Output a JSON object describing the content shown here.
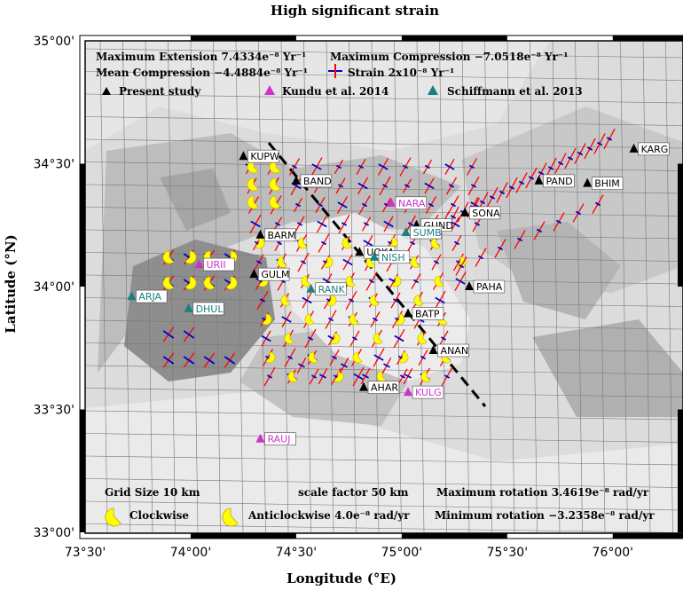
{
  "title": "High significant strain",
  "xlabel": "Longitude (°E)",
  "ylabel": "Latitude (°N)",
  "xticks": [
    "73°30'",
    "74°00'",
    "74°30'",
    "75°00'",
    "75°30'",
    "76°00'"
  ],
  "yticks": [
    "35°00'",
    "34°30'",
    "34°00'",
    "33°30'",
    "33°00'"
  ],
  "legend": {
    "max_extension": "Maximum Extension 7.4334e⁻⁸ Yr⁻¹",
    "max_compression": "Maximum Compression −7.0518e⁻⁸ Yr⁻¹",
    "mean_compression": "Mean Compression −4.4884e⁻⁸ Yr⁻¹",
    "strain_scale": "Strain 2x10⁻⁸ Yr⁻¹",
    "present_study": "Present study",
    "kundu": "Kundu et al. 2014",
    "schiffmann": "Schiffmann et al. 2013",
    "grid_size": "Grid Size 10 km",
    "scale_factor": "scale factor 50 km",
    "max_rotation": "Maximum rotation 3.4619e⁻⁸ rad/yr",
    "min_rotation": "Minimum rotation −3.2358e⁻⁸ rad/yr",
    "clockwise": "Clockwise",
    "anticlockwise": "Anticlockwise 4.0e⁻⁸ rad/yr"
  },
  "colors": {
    "present_study": "#000000",
    "kundu": "#cc33cc",
    "schiffmann": "#1a8080",
    "extension_arrow": "#ff0000",
    "compression_arrow": "#0000cc",
    "rotation_wedge": "#ffff00",
    "fault_line": "#000000"
  },
  "map_extent": {
    "lon": [
      73.5,
      76.333
    ],
    "lat": [
      33.0,
      35.0
    ]
  },
  "stations": [
    {
      "name": "KUPW",
      "group": "present_study",
      "lon": 74.25,
      "lat": 34.53
    },
    {
      "name": "BAND",
      "group": "present_study",
      "lon": 74.5,
      "lat": 34.43
    },
    {
      "name": "BARM",
      "group": "present_study",
      "lon": 74.33,
      "lat": 34.21
    },
    {
      "name": "GULM",
      "group": "present_study",
      "lon": 74.3,
      "lat": 34.05
    },
    {
      "name": "UOKA",
      "group": "present_study",
      "lon": 74.8,
      "lat": 34.14
    },
    {
      "name": "GUND",
      "group": "present_study",
      "lon": 75.07,
      "lat": 34.25
    },
    {
      "name": "SONA",
      "group": "present_study",
      "lon": 75.3,
      "lat": 34.3
    },
    {
      "name": "BATP",
      "group": "present_study",
      "lon": 75.03,
      "lat": 33.89
    },
    {
      "name": "PAHA",
      "group": "present_study",
      "lon": 75.32,
      "lat": 34.0
    },
    {
      "name": "ANAN",
      "group": "present_study",
      "lon": 75.15,
      "lat": 33.74
    },
    {
      "name": "AHAR",
      "group": "present_study",
      "lon": 74.82,
      "lat": 33.59
    },
    {
      "name": "PAND",
      "group": "present_study",
      "lon": 75.65,
      "lat": 34.43
    },
    {
      "name": "BHIM",
      "group": "present_study",
      "lon": 75.88,
      "lat": 34.42
    },
    {
      "name": "KARG",
      "group": "present_study",
      "lon": 76.1,
      "lat": 34.56
    },
    {
      "name": "NARA",
      "group": "kundu",
      "lon": 74.95,
      "lat": 34.34
    },
    {
      "name": "URII",
      "group": "kundu",
      "lon": 74.04,
      "lat": 34.09
    },
    {
      "name": "KULG",
      "group": "kundu",
      "lon": 75.03,
      "lat": 33.57
    },
    {
      "name": "RAUJ",
      "group": "kundu",
      "lon": 74.33,
      "lat": 33.38
    },
    {
      "name": "SUMB",
      "group": "schiffmann",
      "lon": 75.02,
      "lat": 34.22
    },
    {
      "name": "NISH",
      "group": "schiffmann",
      "lon": 74.87,
      "lat": 34.12
    },
    {
      "name": "RANK",
      "group": "schiffmann",
      "lon": 74.57,
      "lat": 33.99
    },
    {
      "name": "DHUL",
      "group": "schiffmann",
      "lon": 73.99,
      "lat": 33.91
    },
    {
      "name": "ARJA",
      "group": "schiffmann",
      "lon": 73.72,
      "lat": 33.96
    }
  ]
}
